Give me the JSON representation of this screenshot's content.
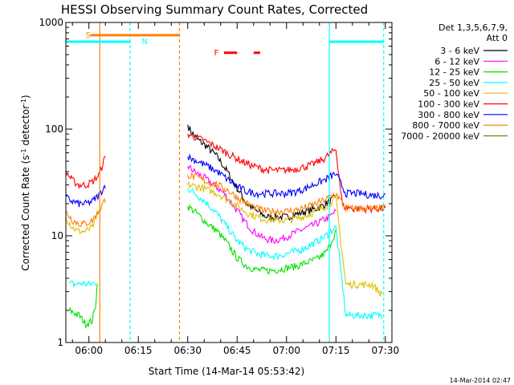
{
  "chart_data": {
    "type": "line",
    "title": "HESSI Observing Summary Count Rates, Corrected",
    "xlabel": "Start Time (14-Mar-14 05:53:42)",
    "ylabel_main": "Corrected Count Rate (s",
    "ylabel_sup1": "-1",
    "ylabel_mid": " detector",
    "ylabel_sup2": "-1",
    "ylabel_end": ")",
    "yscale": "log",
    "ylim": [
      1,
      1000
    ],
    "xlim_minutes": [
      -7,
      92
    ],
    "x_tick_labels": [
      {
        "label": "06:00",
        "t": 0
      },
      {
        "label": "06:15",
        "t": 15
      },
      {
        "label": "06:30",
        "t": 30
      },
      {
        "label": "06:45",
        "t": 45
      },
      {
        "label": "07:00",
        "t": 60
      },
      {
        "label": "07:15",
        "t": 75
      },
      {
        "label": "07:30",
        "t": 90
      }
    ],
    "y_tick_labels": [
      {
        "label": "1",
        "v": 1
      },
      {
        "label": "10",
        "v": 10
      },
      {
        "label": "100",
        "v": 100
      },
      {
        "label": "1000",
        "v": 1000
      }
    ],
    "legend": {
      "placement": "right",
      "header1": "Det 1,3,5,6,7,9,",
      "header2": "Att 0",
      "entries": [
        {
          "label": "3 - 6 keV",
          "color": "#000000"
        },
        {
          "label": "6 - 12 keV",
          "color": "#ff00ff"
        },
        {
          "label": "12 - 25 keV",
          "color": "#00e000"
        },
        {
          "label": "25 - 50 keV",
          "color": "#00ffff"
        },
        {
          "label": "50 - 100 keV",
          "color": "#e0c000"
        },
        {
          "label": "100 - 300 keV",
          "color": "#ff0000"
        },
        {
          "label": "300 - 800 keV",
          "color": "#0000ff"
        },
        {
          "label": "800 - 7000 keV",
          "color": "#ff8000"
        },
        {
          "label": "7000 - 20000 keV",
          "color": "#808000"
        }
      ]
    },
    "flag_labels": [
      {
        "label": "S",
        "color": "#ff8000",
        "t": -1,
        "v": 760,
        "bar": [
          0.5,
          27.5
        ]
      },
      {
        "label": "N",
        "color": "#00ffff",
        "t": 16,
        "v": 660,
        "bar": null
      },
      {
        "label": "F",
        "color": "#ff0000",
        "t": 38,
        "v": 520,
        "bar": [
          41,
          45
        ],
        "bar2": [
          50,
          52
        ]
      }
    ],
    "night_bars": {
      "color": "#00ffff",
      "v": 660,
      "ranges": [
        [
          -7,
          12.5
        ],
        [
          73,
          89.5
        ]
      ]
    },
    "vertical_lines": [
      {
        "t": 3.3,
        "color": "#ff8000",
        "style": "solid"
      },
      {
        "t": 12.5,
        "color": "#00ffff",
        "style": "dashed"
      },
      {
        "t": 27.5,
        "color": "#ff8000",
        "style": "dashed"
      },
      {
        "t": 73,
        "color": "#00ffff",
        "style": "solid"
      },
      {
        "t": 89.5,
        "color": "#00ffff",
        "style": "dashed"
      }
    ],
    "series": [
      {
        "name": "3 - 6 keV",
        "color": "#000000",
        "x": [
          30,
          31,
          33,
          36,
          39,
          42,
          45,
          48,
          51,
          54,
          57,
          60,
          63,
          66,
          69,
          72,
          74,
          75
        ],
        "y": [
          110,
          95,
          80,
          68,
          55,
          40,
          28,
          20,
          17,
          15,
          15,
          15,
          16,
          17,
          18,
          20,
          22,
          23
        ]
      },
      {
        "name": "6 - 12 keV",
        "color": "#ff00ff",
        "x": [
          30,
          32,
          35,
          38,
          41,
          44,
          47,
          50,
          53,
          56,
          59,
          62,
          65,
          68,
          71,
          73,
          74,
          75
        ],
        "y": [
          45,
          40,
          35,
          30,
          25,
          19,
          14,
          11,
          9.5,
          9,
          9.5,
          10.5,
          11.5,
          12.5,
          14,
          15,
          16,
          17
        ]
      },
      {
        "name": "12 - 25 keV",
        "color": "#00e000",
        "x": [
          -6,
          -3,
          -1,
          1,
          2,
          2.5,
          30,
          33,
          36,
          39,
          42,
          45,
          48,
          51,
          54,
          57,
          60,
          63,
          66,
          69,
          72,
          73,
          74,
          75
        ],
        "y": [
          2.0,
          1.8,
          1.5,
          1.6,
          2.2,
          3.5,
          19,
          16,
          13,
          11,
          8.5,
          6.2,
          5.2,
          4.8,
          4.7,
          4.8,
          5.0,
          5.2,
          5.6,
          6.0,
          7.0,
          8.0,
          9.5,
          11
        ]
      },
      {
        "name": "25 - 50 keV",
        "color": "#00ffff",
        "x": [
          -6,
          -4,
          -2,
          0,
          2,
          30,
          33,
          36,
          39,
          42,
          45,
          48,
          51,
          54,
          57,
          60,
          63,
          66,
          69,
          72,
          74,
          75,
          78,
          82,
          86,
          89
        ],
        "y": [
          3.6,
          3.5,
          3.6,
          3.5,
          3.6,
          28,
          24,
          20,
          16,
          12,
          9,
          7.5,
          6.8,
          6.5,
          6.5,
          6.8,
          7.2,
          7.8,
          8.8,
          10,
          11.5,
          12,
          1.8,
          1.8,
          1.8,
          1.8
        ]
      },
      {
        "name": "50 - 100 keV",
        "color": "#e0c000",
        "x": [
          -7,
          -5,
          -3,
          -1,
          1,
          2,
          3,
          30,
          33,
          36,
          39,
          42,
          45,
          48,
          51,
          54,
          57,
          60,
          63,
          66,
          69,
          72,
          74,
          75,
          78,
          82,
          86,
          89
        ],
        "y": [
          15,
          12,
          11,
          11,
          12,
          14,
          17,
          30,
          29,
          27,
          25,
          22,
          19,
          16.5,
          15,
          14.2,
          14,
          14,
          14.5,
          15.5,
          17,
          19,
          21,
          22,
          3.5,
          3.5,
          3.5,
          2.8
        ]
      },
      {
        "name": "100 - 300 keV",
        "color": "#ff0000",
        "x": [
          -7,
          -5,
          -3,
          -1,
          1,
          3,
          5,
          30,
          32,
          35,
          38,
          41,
          44,
          47,
          50,
          53,
          56,
          59,
          62,
          65,
          68,
          71,
          73,
          75,
          77,
          80,
          84,
          88,
          90
        ],
        "y": [
          40,
          33,
          30,
          30,
          32,
          37,
          55,
          90,
          85,
          78,
          70,
          62,
          55,
          49,
          45,
          42,
          41,
          41,
          42,
          44,
          47,
          52,
          58,
          65,
          19,
          18,
          18,
          18,
          18
        ]
      },
      {
        "name": "300 - 800 keV",
        "color": "#0000ff",
        "x": [
          -7,
          -5,
          -3,
          -1,
          1,
          3,
          5,
          30,
          33,
          36,
          39,
          42,
          45,
          48,
          51,
          54,
          57,
          60,
          63,
          66,
          69,
          72,
          74,
          75,
          78,
          82,
          86,
          90
        ],
        "y": [
          23,
          21,
          20,
          20,
          21,
          24,
          30,
          55,
          50,
          45,
          40,
          34,
          29,
          26,
          25,
          25,
          25,
          25,
          26,
          28,
          31,
          34,
          37,
          38,
          25,
          25,
          24,
          24
        ]
      },
      {
        "name": "800 - 7000 keV",
        "color": "#ff8000",
        "x": [
          -7,
          -5,
          -3,
          -1,
          1,
          3,
          5,
          30,
          33,
          36,
          39,
          42,
          45,
          48,
          51,
          54,
          57,
          60,
          63,
          66,
          69,
          72,
          74,
          75,
          78,
          82,
          86,
          90
        ],
        "y": [
          17,
          14,
          13,
          13,
          14,
          17,
          22,
          37,
          35,
          32,
          30,
          27,
          23,
          20,
          18,
          17,
          17,
          17,
          17.5,
          18.5,
          20,
          22,
          24,
          25,
          18,
          18,
          18,
          18
        ]
      },
      {
        "name": "7000 - 20000 keV",
        "color": "#808000",
        "x": [],
        "y": []
      }
    ],
    "timestamp": "14-Mar-2014 02:47"
  }
}
